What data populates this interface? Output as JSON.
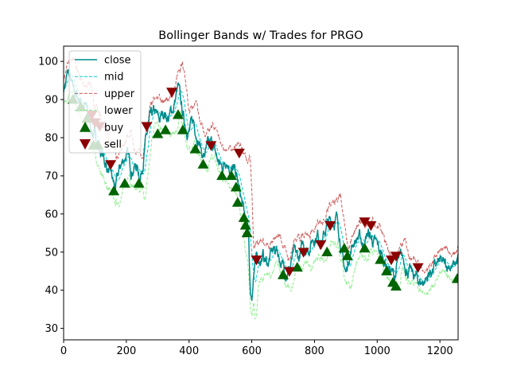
{
  "chart_data": {
    "type": "line",
    "title": "Bollinger Bands w/ Trades for PRGO",
    "xlabel": "",
    "ylabel": "",
    "xlim": [
      0,
      1258
    ],
    "ylim": [
      27,
      104
    ],
    "x_ticks": [
      0,
      200,
      400,
      600,
      800,
      1000,
      1200
    ],
    "y_ticks": [
      30,
      40,
      50,
      60,
      70,
      80,
      90,
      100
    ],
    "x_tick_labels": [
      "0",
      "200",
      "400",
      "600",
      "800",
      "1000",
      "1200"
    ],
    "y_tick_labels": [
      "30",
      "40",
      "50",
      "60",
      "70",
      "80",
      "90",
      "100"
    ],
    "legend_position": "top-left",
    "legend": [
      "close",
      "mid",
      "upper",
      "lower",
      "buy",
      "sell"
    ],
    "colors": {
      "close": "#008b8b",
      "mid": "#00ced1",
      "upper": "#cd5c5c",
      "lower": "#90ee90",
      "buy": "#006400",
      "sell": "#8b0000"
    },
    "close_keypoints": [
      [
        0,
        93
      ],
      [
        15,
        97
      ],
      [
        30,
        92
      ],
      [
        50,
        90
      ],
      [
        70,
        88
      ],
      [
        90,
        82
      ],
      [
        110,
        78
      ],
      [
        130,
        74
      ],
      [
        150,
        70
      ],
      [
        165,
        66
      ],
      [
        180,
        72
      ],
      [
        200,
        76
      ],
      [
        215,
        72
      ],
      [
        230,
        73
      ],
      [
        245,
        70
      ],
      [
        260,
        78
      ],
      [
        275,
        84
      ],
      [
        290,
        86
      ],
      [
        305,
        84
      ],
      [
        320,
        87
      ],
      [
        335,
        85
      ],
      [
        350,
        88
      ],
      [
        365,
        93
      ],
      [
        375,
        88
      ],
      [
        385,
        84
      ],
      [
        400,
        82
      ],
      [
        415,
        84
      ],
      [
        430,
        80
      ],
      [
        445,
        75
      ],
      [
        460,
        77
      ],
      [
        475,
        78
      ],
      [
        490,
        74
      ],
      [
        505,
        72
      ],
      [
        520,
        75
      ],
      [
        535,
        72
      ],
      [
        550,
        70
      ],
      [
        560,
        66
      ],
      [
        570,
        62
      ],
      [
        580,
        58
      ],
      [
        590,
        55
      ],
      [
        595,
        40
      ],
      [
        600,
        38
      ],
      [
        605,
        44
      ],
      [
        610,
        47
      ],
      [
        620,
        48
      ],
      [
        635,
        49
      ],
      [
        650,
        47
      ],
      [
        665,
        50
      ],
      [
        680,
        51
      ],
      [
        695,
        47
      ],
      [
        705,
        45
      ],
      [
        720,
        46
      ],
      [
        735,
        49
      ],
      [
        750,
        48
      ],
      [
        765,
        52
      ],
      [
        780,
        51
      ],
      [
        795,
        54
      ],
      [
        810,
        55
      ],
      [
        825,
        53
      ],
      [
        840,
        57
      ],
      [
        855,
        58
      ],
      [
        870,
        59
      ],
      [
        880,
        55
      ],
      [
        890,
        48
      ],
      [
        900,
        44
      ],
      [
        910,
        49
      ],
      [
        925,
        53
      ],
      [
        940,
        54
      ],
      [
        955,
        52
      ],
      [
        970,
        55
      ],
      [
        985,
        53
      ],
      [
        1000,
        51
      ],
      [
        1015,
        49
      ],
      [
        1030,
        47
      ],
      [
        1045,
        45
      ],
      [
        1055,
        43
      ],
      [
        1065,
        47
      ],
      [
        1080,
        48
      ],
      [
        1095,
        46
      ],
      [
        1110,
        44
      ],
      [
        1125,
        43
      ],
      [
        1140,
        42
      ],
      [
        1155,
        43
      ],
      [
        1170,
        45
      ],
      [
        1185,
        46
      ],
      [
        1200,
        47
      ],
      [
        1215,
        46
      ],
      [
        1230,
        47
      ],
      [
        1245,
        46
      ],
      [
        1258,
        48
      ]
    ],
    "band_width_keypoints": [
      [
        0,
        3
      ],
      [
        50,
        4
      ],
      [
        120,
        6
      ],
      [
        180,
        5
      ],
      [
        240,
        4
      ],
      [
        300,
        3
      ],
      [
        370,
        5
      ],
      [
        420,
        4
      ],
      [
        500,
        3
      ],
      [
        560,
        6
      ],
      [
        590,
        12
      ],
      [
        610,
        6
      ],
      [
        650,
        3
      ],
      [
        700,
        3
      ],
      [
        760,
        3
      ],
      [
        820,
        4
      ],
      [
        880,
        5
      ],
      [
        920,
        4
      ],
      [
        1000,
        3
      ],
      [
        1060,
        3
      ],
      [
        1120,
        2.5
      ],
      [
        1200,
        2.5
      ],
      [
        1258,
        3
      ]
    ],
    "buy": [
      [
        30,
        90
      ],
      [
        55,
        88
      ],
      [
        75,
        85
      ],
      [
        95,
        78
      ],
      [
        110,
        78
      ],
      [
        160,
        66
      ],
      [
        195,
        68
      ],
      [
        240,
        68
      ],
      [
        300,
        81
      ],
      [
        325,
        82
      ],
      [
        365,
        86
      ],
      [
        380,
        82
      ],
      [
        420,
        77
      ],
      [
        445,
        73
      ],
      [
        505,
        70
      ],
      [
        535,
        70
      ],
      [
        550,
        67
      ],
      [
        555,
        63
      ],
      [
        575,
        59
      ],
      [
        580,
        57
      ],
      [
        585,
        55
      ],
      [
        700,
        44
      ],
      [
        745,
        46
      ],
      [
        840,
        50
      ],
      [
        895,
        51
      ],
      [
        905,
        49
      ],
      [
        960,
        51
      ],
      [
        1010,
        48
      ],
      [
        1030,
        45
      ],
      [
        1050,
        42
      ],
      [
        1060,
        41
      ],
      [
        1255,
        43
      ]
    ],
    "sell": [
      [
        90,
        86
      ],
      [
        100,
        84
      ],
      [
        115,
        83
      ],
      [
        150,
        73
      ],
      [
        265,
        83
      ],
      [
        345,
        92
      ],
      [
        470,
        78
      ],
      [
        560,
        76
      ],
      [
        615,
        48
      ],
      [
        720,
        45
      ],
      [
        765,
        50
      ],
      [
        820,
        52
      ],
      [
        850,
        57
      ],
      [
        960,
        58
      ],
      [
        980,
        57
      ],
      [
        1045,
        48
      ],
      [
        1060,
        49
      ],
      [
        1130,
        46
      ]
    ]
  }
}
